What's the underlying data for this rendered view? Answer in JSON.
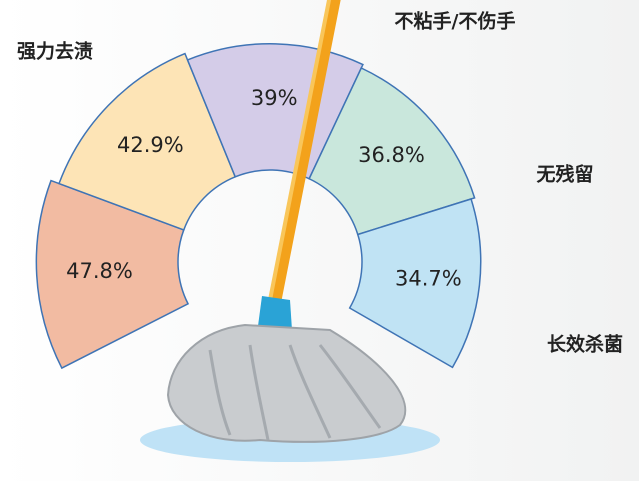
{
  "chart_data": {
    "type": "donut",
    "categories": [
      null,
      "强力去渍",
      "不粘手/不伤手",
      "无残留",
      "长效杀菌"
    ],
    "values": [
      47.8,
      42.9,
      39,
      36.8,
      34.7
    ],
    "value_labels": [
      "47.8%",
      "42.9%",
      "39%",
      "36.8%",
      "34.7%"
    ],
    "colors": [
      "#f2bba2",
      "#fde4b6",
      "#d4cce8",
      "#c9e7dc",
      "#c0e3f4"
    ]
  }
}
